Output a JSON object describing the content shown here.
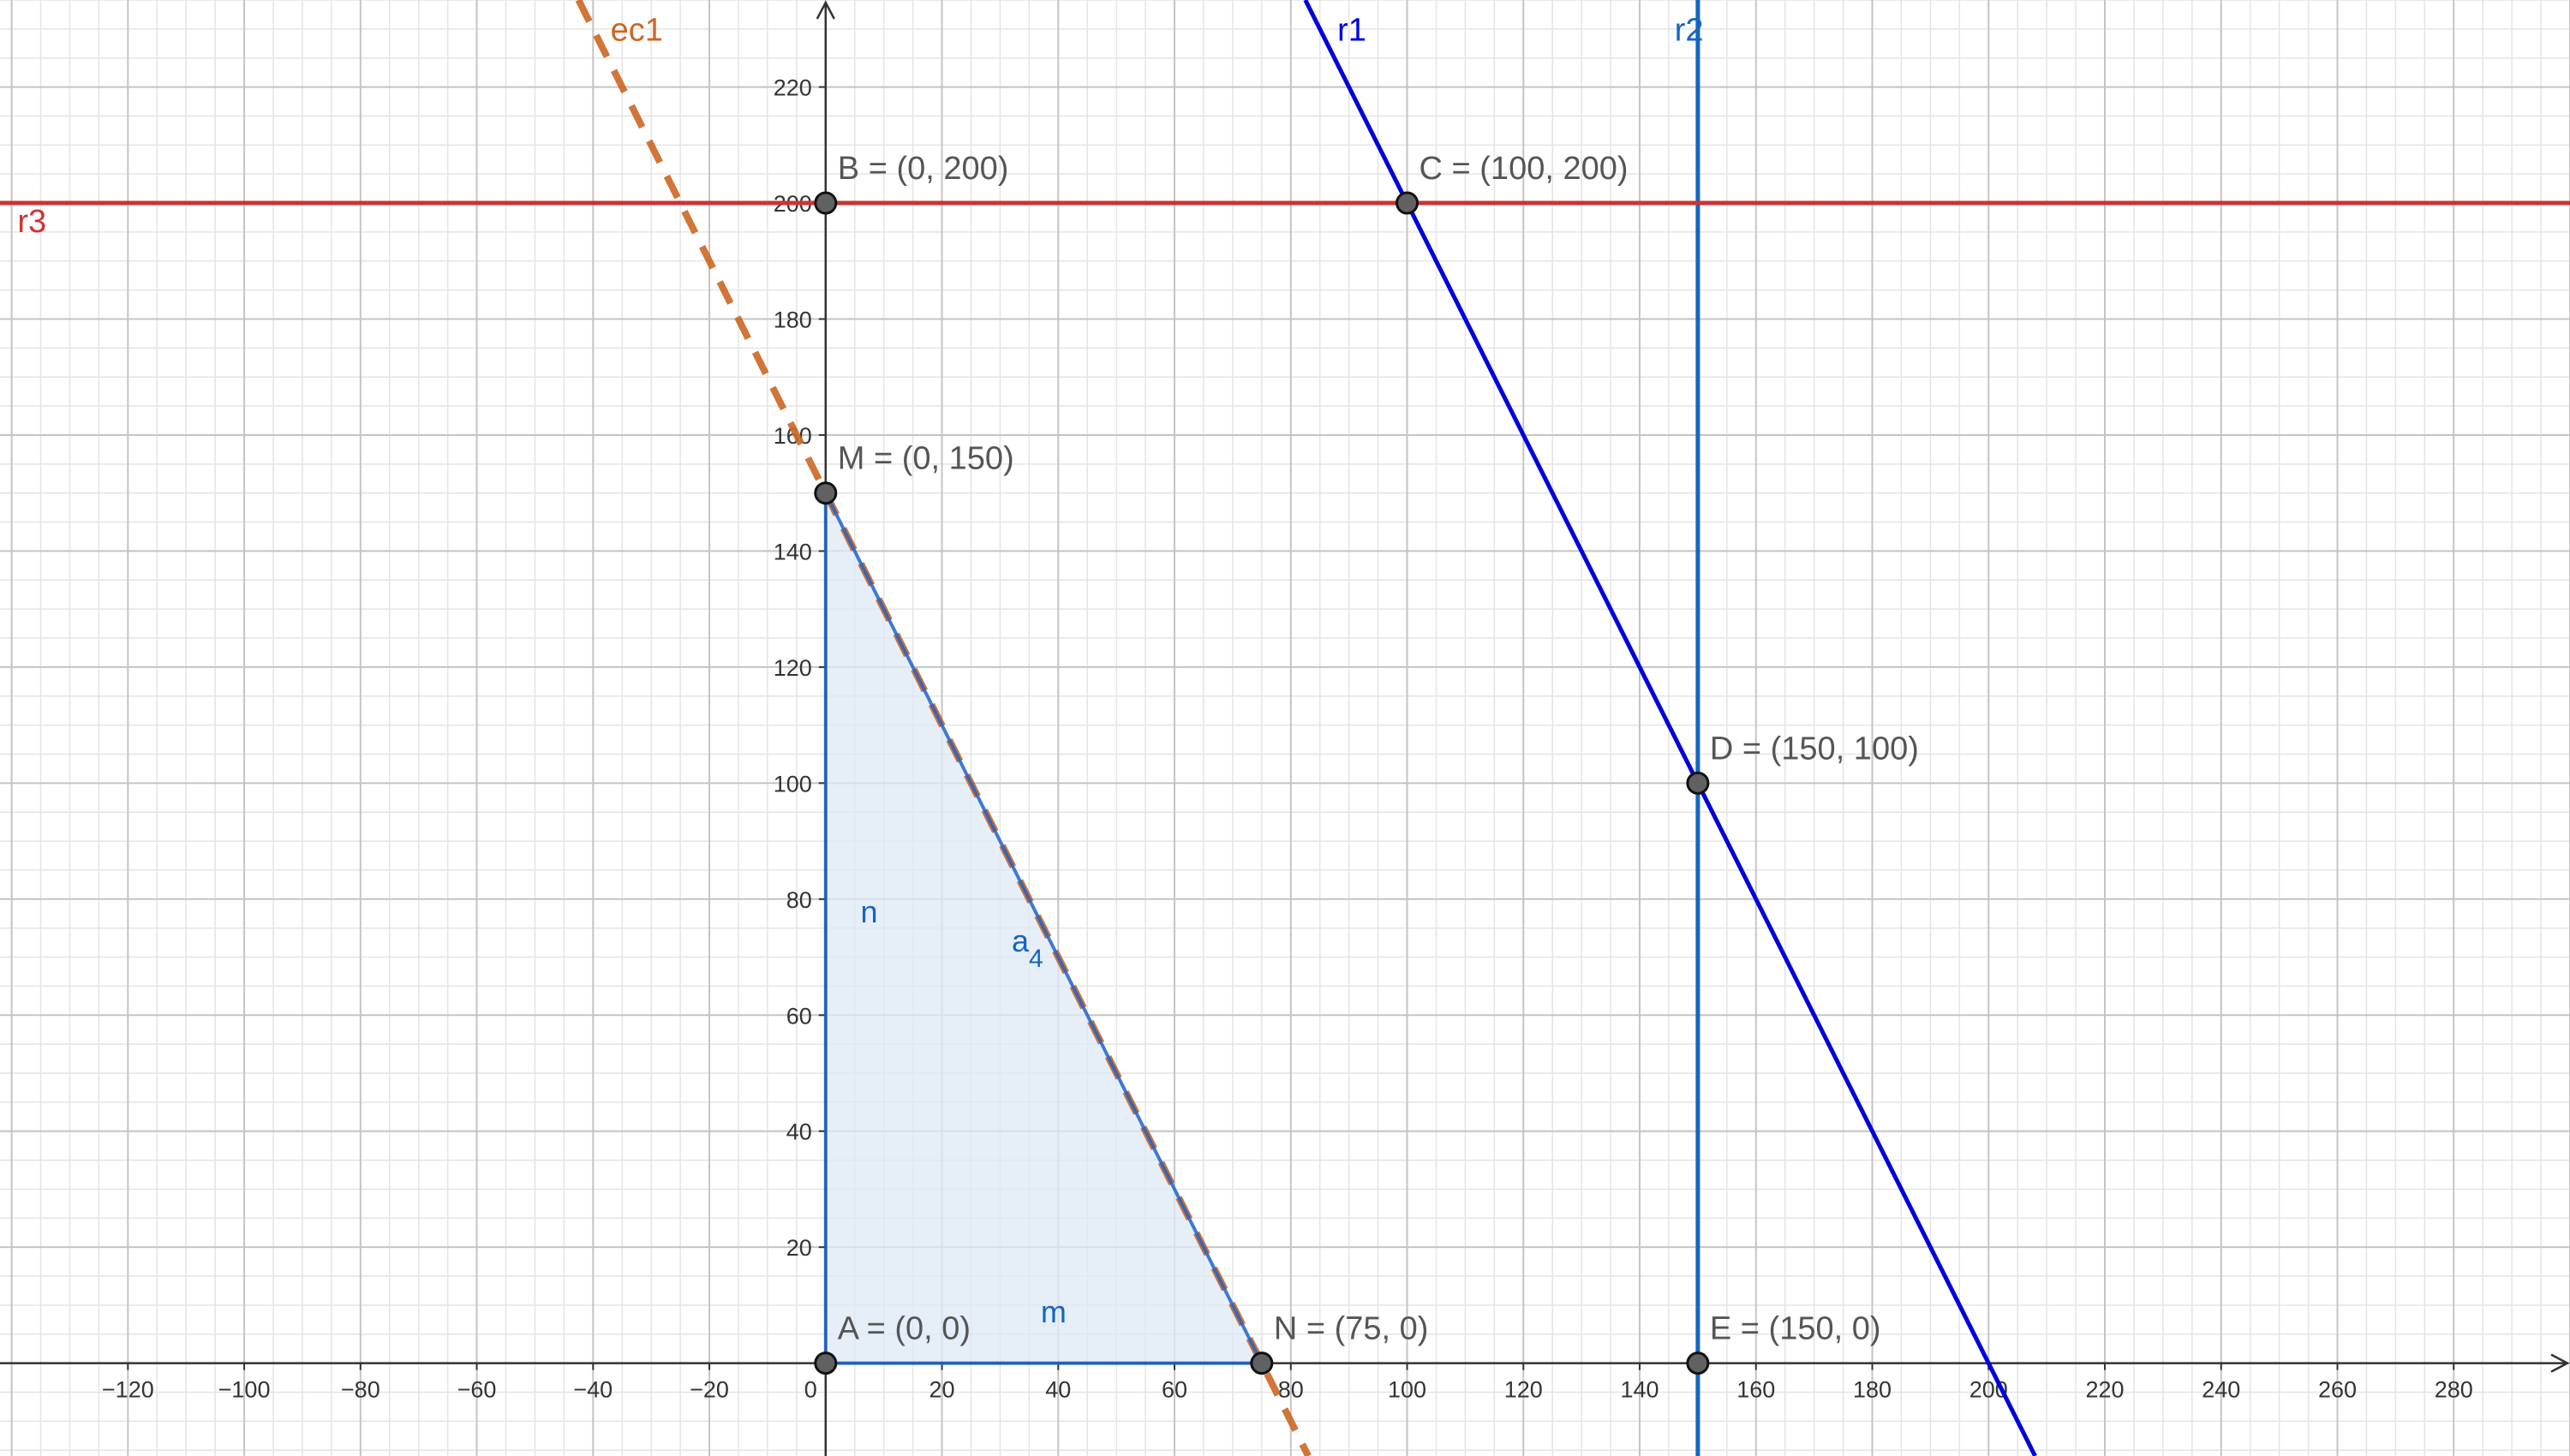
{
  "view": {
    "x_range": [
      -142,
      300
    ],
    "y_range": [
      -16,
      235
    ],
    "minor_grid_step": 5,
    "major_grid_step": 20,
    "axis_ticks": {
      "step": 20
    },
    "colors": {
      "background": "#ffffff",
      "minor_grid": "#e4e4e4",
      "major_grid": "#c4c4c4",
      "axis": "#333333",
      "region_fill": "#dde8f5",
      "segment": "#1e64c8",
      "r1": "#0000dd",
      "r2": "#1565c0",
      "r3": "#cc3333",
      "ec1": "#cc6622",
      "point_fill": "#616161",
      "point_stroke": "#111111"
    }
  },
  "chart_data": {
    "type": "diagram",
    "x_ticks": [
      "−120",
      "−100",
      "−80",
      "−60",
      "−40",
      "−20",
      "0",
      "20",
      "40",
      "60",
      "80",
      "100",
      "120",
      "140",
      "160",
      "180",
      "200",
      "220",
      "240",
      "260",
      "280"
    ],
    "x_tick_values": [
      -120,
      -100,
      -80,
      -60,
      -40,
      -20,
      0,
      20,
      40,
      60,
      80,
      100,
      120,
      140,
      160,
      180,
      200,
      220,
      240,
      260,
      280
    ],
    "y_ticks": [
      "20",
      "40",
      "60",
      "80",
      "100",
      "120",
      "140",
      "160",
      "180",
      "200",
      "220"
    ],
    "y_tick_values": [
      20,
      40,
      60,
      80,
      100,
      120,
      140,
      160,
      180,
      200,
      220
    ],
    "lines": [
      {
        "name": "r1",
        "slope": -2,
        "intercept": 400,
        "style": "solid",
        "color": "#0000dd",
        "label_x": 88,
        "label_y": 228
      },
      {
        "name": "r2",
        "vertical_x": 150,
        "style": "solid",
        "color": "#1565c0",
        "label_x": 146,
        "label_y": 228
      },
      {
        "name": "r3",
        "slope": 0,
        "intercept": 200,
        "style": "solid",
        "color": "#cc3333",
        "label_x": -139,
        "label_y": 195
      },
      {
        "name": "ec1",
        "slope": -2,
        "intercept": 150,
        "style": "dashed",
        "color": "#cc6622",
        "label_x": -37,
        "label_y": 228
      }
    ],
    "points": [
      {
        "id": "A",
        "label": "A = (0, 0)",
        "x": 0,
        "y": 0
      },
      {
        "id": "B",
        "label": "B = (0, 200)",
        "x": 0,
        "y": 200
      },
      {
        "id": "C",
        "label": "C = (100, 200)",
        "x": 100,
        "y": 200
      },
      {
        "id": "D",
        "label": "D = (150, 100)",
        "x": 150,
        "y": 100
      },
      {
        "id": "E",
        "label": "E = (150, 0)",
        "x": 150,
        "y": 0
      },
      {
        "id": "M",
        "label": "M = (0, 150)",
        "x": 0,
        "y": 150
      },
      {
        "id": "N",
        "label": "N = (75, 0)",
        "x": 75,
        "y": 0
      }
    ],
    "region": {
      "vertices": [
        [
          0,
          0
        ],
        [
          0,
          150
        ],
        [
          75,
          0
        ]
      ]
    },
    "segments": [
      {
        "name": "n",
        "from": "A",
        "to": "M",
        "label_x": 6,
        "label_y": 76
      },
      {
        "name": "m",
        "from": "A",
        "to": "N",
        "label_x": 37,
        "label_y": 7
      },
      {
        "name": "a",
        "subscript": "4",
        "from": "M",
        "to": "N",
        "label_x": 32,
        "label_y": 71
      }
    ]
  }
}
